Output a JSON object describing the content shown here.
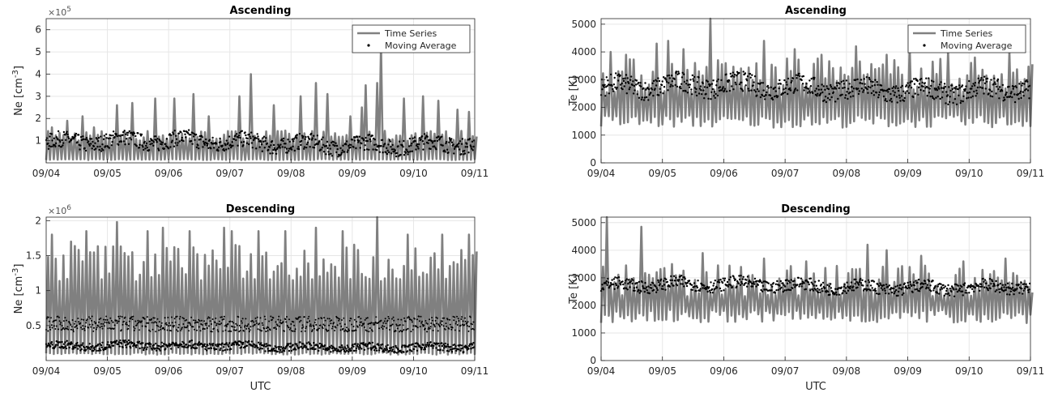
{
  "chart_data": [
    {
      "type": "line",
      "id": "ne-ascending",
      "title": "Ascending",
      "ylabel": "Ne [cm",
      "ylabel_unit_sup": "-3",
      "ylabel_close": "]",
      "xlabel": "",
      "exponent_base": "×10",
      "exponent_power": "5",
      "ylim": [
        0,
        6.5
      ],
      "yticks": [
        1,
        2,
        3,
        4,
        5,
        6
      ],
      "ytick_labels": [
        "1",
        "2",
        "3",
        "4",
        "5",
        "6"
      ],
      "xticks": [
        "09/04",
        "09/05",
        "09/06",
        "09/07",
        "09/08",
        "09/09",
        "09/10",
        "09/11"
      ],
      "grid": true,
      "legend": {
        "position": "top-right",
        "entries": [
          "Time Series",
          "Moving Average"
        ]
      },
      "series": [
        {
          "name": "Time Series",
          "style": "thick gray line",
          "color": "#808080",
          "period": 0.0625,
          "base_min": 0.15,
          "base_max": 1.4,
          "peaks": [
            [
              0.05,
              1.6
            ],
            [
              0.3,
              1.9
            ],
            [
              0.55,
              2.1
            ],
            [
              0.75,
              1.6
            ],
            [
              1.15,
              2.6
            ],
            [
              1.35,
              2.7
            ],
            [
              1.75,
              2.9
            ],
            [
              2.05,
              2.9
            ],
            [
              2.35,
              3.1
            ],
            [
              2.65,
              2.1
            ],
            [
              3.15,
              3.0
            ],
            [
              3.3,
              4.0
            ],
            [
              3.7,
              2.6
            ],
            [
              4.1,
              3.0
            ],
            [
              4.35,
              3.6
            ],
            [
              4.55,
              3.1
            ],
            [
              4.95,
              2.1
            ],
            [
              5.1,
              2.5
            ],
            [
              5.2,
              3.5
            ],
            [
              5.35,
              3.6
            ],
            [
              5.42,
              6.5
            ],
            [
              5.45,
              5.3
            ],
            [
              5.8,
              2.9
            ],
            [
              6.15,
              3.0
            ],
            [
              6.35,
              2.8
            ],
            [
              6.7,
              2.4
            ],
            [
              6.9,
              2.3
            ]
          ]
        },
        {
          "name": "Moving Average",
          "style": "black dots",
          "color": "#000000",
          "level": 0.9,
          "spread": 0.45
        }
      ]
    },
    {
      "type": "line",
      "id": "te-ascending",
      "title": "Ascending",
      "ylabel": "Te [K]",
      "xlabel": "",
      "ylim": [
        0,
        5200
      ],
      "yticks": [
        0,
        1000,
        2000,
        3000,
        4000,
        5000
      ],
      "ytick_labels": [
        "0",
        "1000",
        "2000",
        "3000",
        "4000",
        "5000"
      ],
      "xticks": [
        "09/04",
        "09/05",
        "09/06",
        "09/07",
        "09/08",
        "09/09",
        "09/10",
        "09/11"
      ],
      "grid": true,
      "legend": {
        "position": "top-right",
        "entries": [
          "Time Series",
          "Moving Average"
        ]
      },
      "series": [
        {
          "name": "Time Series",
          "style": "thick gray line",
          "color": "#808080",
          "period": 0.0625,
          "base_min": 1500,
          "base_max": 3600,
          "peaks": [
            [
              0.1,
              4000
            ],
            [
              0.4,
              3900
            ],
            [
              0.85,
              4300
            ],
            [
              1.05,
              4400
            ],
            [
              1.3,
              4100
            ],
            [
              1.75,
              5200
            ],
            [
              2.6,
              4400
            ],
            [
              3.1,
              4100
            ],
            [
              3.55,
              3900
            ],
            [
              4.1,
              4200
            ],
            [
              4.6,
              3900
            ],
            [
              5.0,
              4200
            ],
            [
              5.6,
              4000
            ],
            [
              6.05,
              3800
            ],
            [
              6.6,
              4000
            ]
          ]
        },
        {
          "name": "Moving Average",
          "style": "black dots",
          "color": "#000000",
          "level": 2700,
          "spread": 450
        }
      ]
    },
    {
      "type": "line",
      "id": "ne-descending",
      "title": "Descending",
      "ylabel": "Ne [cm",
      "ylabel_unit_sup": "-3",
      "ylabel_close": "]",
      "xlabel": "UTC",
      "exponent_base": "×10",
      "exponent_power": "6",
      "ylim": [
        0,
        2.05
      ],
      "yticks": [
        0.5,
        1,
        1.5,
        2
      ],
      "ytick_labels": [
        "0.5",
        "1",
        "1.5",
        "2"
      ],
      "xticks": [
        "09/04",
        "09/05",
        "09/06",
        "09/07",
        "09/08",
        "09/09",
        "09/10",
        "09/11"
      ],
      "grid": true,
      "series": [
        {
          "name": "Time Series",
          "style": "thick gray line",
          "color": "#808080",
          "period": 0.0625,
          "base_min": 0.1,
          "base_max": 1.6,
          "peaks": [
            [
              0.05,
              1.8
            ],
            [
              0.35,
              1.7
            ],
            [
              0.65,
              1.85
            ],
            [
              1.15,
              1.98
            ],
            [
              1.6,
              1.85
            ],
            [
              1.9,
              1.9
            ],
            [
              2.3,
              1.85
            ],
            [
              2.85,
              1.9
            ],
            [
              3.0,
              1.85
            ],
            [
              3.45,
              1.85
            ],
            [
              3.9,
              1.85
            ],
            [
              4.35,
              1.9
            ],
            [
              4.8,
              1.85
            ],
            [
              5.4,
              2.05
            ],
            [
              5.85,
              1.8
            ],
            [
              6.45,
              1.8
            ],
            [
              6.9,
              1.8
            ]
          ]
        },
        {
          "name": "Moving Average",
          "style": "black dots",
          "color": "#000000",
          "level": 0.2,
          "spread": 0.07,
          "upper_band": 0.55
        }
      ]
    },
    {
      "type": "line",
      "id": "te-descending",
      "title": "Descending",
      "ylabel": "Te [K]",
      "xlabel": "UTC",
      "ylim": [
        0,
        5200
      ],
      "yticks": [
        0,
        1000,
        2000,
        3000,
        4000,
        5000
      ],
      "ytick_labels": [
        "0",
        "1000",
        "2000",
        "3000",
        "4000",
        "5000"
      ],
      "xticks": [
        "09/04",
        "09/05",
        "09/06",
        "09/07",
        "09/08",
        "09/09",
        "09/10",
        "09/11"
      ],
      "grid": true,
      "series": [
        {
          "name": "Time Series",
          "style": "thick gray line",
          "color": "#808080",
          "period": 0.0625,
          "base_min": 1600,
          "base_max": 3300,
          "peaks": [
            [
              0.05,
              5200
            ],
            [
              0.6,
              4850
            ],
            [
              1.15,
              3500
            ],
            [
              1.65,
              3900
            ],
            [
              2.6,
              3700
            ],
            [
              3.3,
              3600
            ],
            [
              4.3,
              4200
            ],
            [
              4.65,
              4000
            ],
            [
              5.2,
              3800
            ],
            [
              5.85,
              3600
            ],
            [
              6.55,
              3700
            ]
          ]
        },
        {
          "name": "Moving Average",
          "style": "black dots",
          "color": "#000000",
          "level": 2700,
          "spread": 280
        }
      ]
    }
  ]
}
